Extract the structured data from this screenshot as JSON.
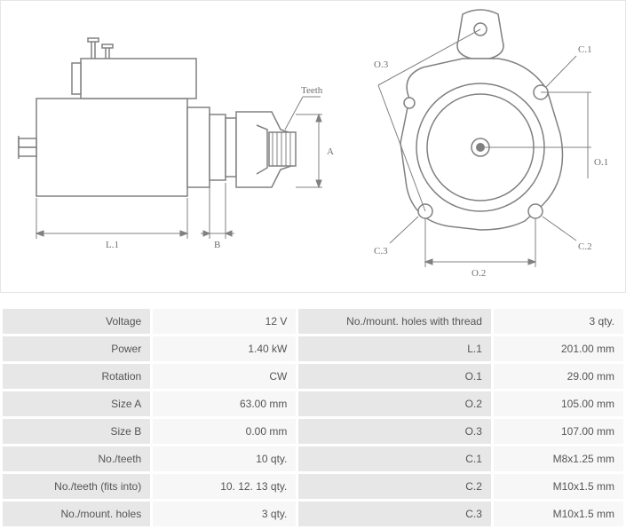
{
  "diagram": {
    "labels": {
      "teeth": "Teeth",
      "A": "A",
      "B": "B",
      "L1": "L.1",
      "O1": "O.1",
      "O2": "O.2",
      "O3": "O.3",
      "C1": "C.1",
      "C2": "C.2",
      "C3": "C.3"
    }
  },
  "style": {
    "stroke": "#808080",
    "stroke_thin": "#808080",
    "fill": "#ffffff",
    "label_color": "#707070",
    "label_fontsize": 11,
    "table_key_bg": "#e7e7e7",
    "table_val_bg": "#f7f7f7",
    "table_text": "#555555"
  },
  "left_specs": [
    {
      "k": "Voltage",
      "v": "12 V"
    },
    {
      "k": "Power",
      "v": "1.40 kW"
    },
    {
      "k": "Rotation",
      "v": "CW"
    },
    {
      "k": "Size A",
      "v": "63.00 mm"
    },
    {
      "k": "Size B",
      "v": "0.00 mm"
    },
    {
      "k": "No./teeth",
      "v": "10 qty."
    },
    {
      "k": "No./teeth (fits into)",
      "v": "10. 12. 13 qty."
    },
    {
      "k": "No./mount. holes",
      "v": "3 qty."
    }
  ],
  "right_specs": [
    {
      "k": "No./mount. holes with thread",
      "v": "3 qty."
    },
    {
      "k": "L.1",
      "v": "201.00 mm"
    },
    {
      "k": "O.1",
      "v": "29.00 mm"
    },
    {
      "k": "O.2",
      "v": "105.00 mm"
    },
    {
      "k": "O.3",
      "v": "107.00 mm"
    },
    {
      "k": "C.1",
      "v": "M8x1.25 mm"
    },
    {
      "k": "C.2",
      "v": "M10x1.5 mm"
    },
    {
      "k": "C.3",
      "v": "M10x1.5 mm"
    }
  ]
}
